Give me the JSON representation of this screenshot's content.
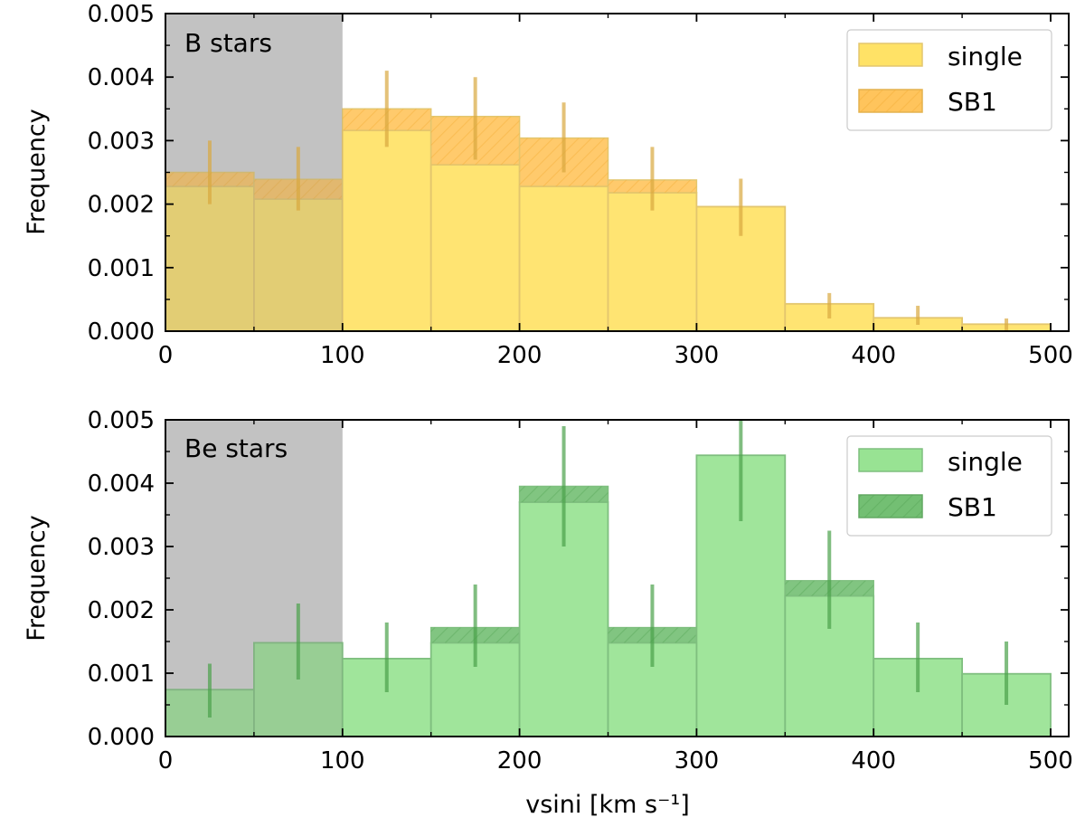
{
  "chart_data": [
    {
      "type": "bar",
      "title": "",
      "panel_label": "B stars",
      "xlabel": "",
      "ylabel": "Frequency",
      "xlim": [
        0,
        500
      ],
      "ylim": [
        0,
        0.005
      ],
      "x_ticks": [
        "0",
        "100",
        "200",
        "300",
        "400",
        "500"
      ],
      "y_ticks": [
        "0.000",
        "0.001",
        "0.002",
        "0.003",
        "0.004",
        "0.005"
      ],
      "bin_edges": [
        0,
        50,
        100,
        150,
        200,
        250,
        300,
        350,
        400,
        450,
        500
      ],
      "shaded_region": [
        0,
        100
      ],
      "legend_position": "top-right",
      "colors": {
        "single": "#ffe266",
        "single_edge": "#e3c66e",
        "sb1": "#ffc45c",
        "hatch": "#f4b03c",
        "error": "#d9a83f",
        "shade": "#d3d3d3"
      },
      "series": [
        {
          "name": "single",
          "values": [
            0.00228,
            0.00208,
            0.00316,
            0.00262,
            0.00228,
            0.00218,
            0.00196,
            0.00043,
            0.00021,
            0.00011
          ]
        },
        {
          "name": "SB1",
          "values": [
            0.00022,
            0.00031,
            0.00034,
            0.00076,
            0.00076,
            0.0002,
            0.0,
            0.0,
            0.0,
            0.0
          ]
        }
      ],
      "error_bars": [
        [
          0.002,
          0.003
        ],
        [
          0.0019,
          0.0029
        ],
        [
          0.0029,
          0.0041
        ],
        [
          0.0027,
          0.004
        ],
        [
          0.0025,
          0.0036
        ],
        [
          0.0019,
          0.0029
        ],
        [
          0.0015,
          0.0024
        ],
        [
          0.0002,
          0.0006
        ],
        [
          0.0001,
          0.0004
        ],
        [
          0.0,
          0.0002
        ]
      ]
    },
    {
      "type": "bar",
      "title": "",
      "panel_label": "Be stars",
      "xlabel": "vsini [km s⁻¹]",
      "ylabel": "Frequency",
      "xlim": [
        0,
        500
      ],
      "ylim": [
        0,
        0.005
      ],
      "x_ticks": [
        "0",
        "100",
        "200",
        "300",
        "400",
        "500"
      ],
      "y_ticks": [
        "0.000",
        "0.001",
        "0.002",
        "0.003",
        "0.004",
        "0.005"
      ],
      "bin_edges": [
        0,
        50,
        100,
        150,
        200,
        250,
        300,
        350,
        400,
        450,
        500
      ],
      "shaded_region": [
        0,
        100
      ],
      "legend_position": "top-right",
      "colors": {
        "single": "#98e393",
        "single_edge": "#7fbf7f",
        "sb1": "#73bf73",
        "hatch": "#5aa85a",
        "error": "#4aa14a",
        "shade": "#d3d3d3"
      },
      "series": [
        {
          "name": "single",
          "values": [
            0.00074,
            0.00148,
            0.00123,
            0.00148,
            0.0037,
            0.00148,
            0.00444,
            0.00222,
            0.00123,
            0.00099
          ]
        },
        {
          "name": "SB1",
          "values": [
            0.0,
            0.0,
            0.0,
            0.00024,
            0.00025,
            0.00024,
            0.0,
            0.00024,
            0.0,
            0.0
          ]
        }
      ],
      "error_bars": [
        [
          0.0003,
          0.00115
        ],
        [
          0.0009,
          0.0021
        ],
        [
          0.0007,
          0.0018
        ],
        [
          0.0011,
          0.0024
        ],
        [
          0.003,
          0.0049
        ],
        [
          0.0011,
          0.0024
        ],
        [
          0.0034,
          0.005
        ],
        [
          0.0017,
          0.00325
        ],
        [
          0.0007,
          0.0018
        ],
        [
          0.0005,
          0.0015
        ]
      ]
    }
  ]
}
